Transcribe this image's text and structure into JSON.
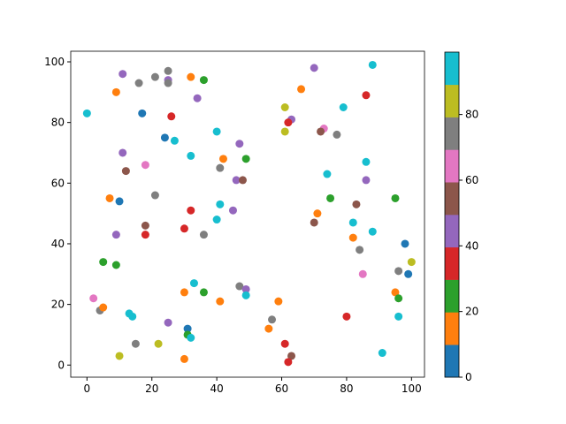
{
  "chart_data": {
    "type": "scatter",
    "x": [
      0,
      9,
      11,
      16,
      21,
      25,
      25,
      25,
      32,
      36,
      17,
      26,
      24,
      27,
      34,
      40,
      11,
      18,
      12,
      32,
      42,
      41,
      49,
      47,
      46,
      48,
      21,
      7,
      10,
      41,
      32,
      45,
      40,
      18,
      30,
      18,
      9,
      36,
      5,
      9,
      33,
      30,
      36,
      47,
      49,
      49,
      41,
      2,
      4,
      5,
      13,
      14,
      25,
      31,
      31,
      32,
      15,
      22,
      10,
      30,
      70,
      88,
      66,
      86,
      61,
      79,
      63,
      62,
      61,
      73,
      72,
      77,
      86,
      74,
      86,
      75,
      95,
      83,
      71,
      70,
      82,
      88,
      82,
      98,
      84,
      100,
      96,
      99,
      85,
      95,
      96,
      59,
      96,
      80,
      57,
      56,
      61,
      91,
      63,
      62
    ],
    "y": [
      83,
      90,
      96,
      93,
      95,
      97,
      94,
      93,
      95,
      94,
      83,
      82,
      75,
      74,
      88,
      77,
      70,
      66,
      64,
      69,
      68,
      65,
      68,
      73,
      61,
      61,
      56,
      55,
      54,
      53,
      51,
      51,
      48,
      46,
      45,
      43,
      43,
      43,
      34,
      33,
      27,
      24,
      24,
      26,
      25,
      23,
      21,
      22,
      18,
      19,
      17,
      16,
      14,
      12,
      10,
      9,
      7,
      7,
      3,
      2,
      98,
      99,
      91,
      89,
      85,
      85,
      81,
      80,
      77,
      78,
      77,
      76,
      67,
      63,
      61,
      55,
      55,
      53,
      50,
      47,
      47,
      44,
      42,
      40,
      38,
      34,
      31,
      30,
      30,
      24,
      22,
      21,
      16,
      16,
      15,
      12,
      7,
      4,
      3,
      1
    ],
    "c": [
      95,
      15,
      45,
      75,
      75,
      75,
      45,
      75,
      15,
      25,
      5,
      35,
      5,
      95,
      45,
      95,
      45,
      65,
      55,
      95,
      15,
      75,
      25,
      45,
      45,
      55,
      75,
      15,
      5,
      95,
      35,
      45,
      95,
      55,
      35,
      35,
      45,
      75,
      25,
      25,
      95,
      15,
      25,
      75,
      45,
      95,
      15,
      65,
      75,
      15,
      95,
      95,
      45,
      5,
      25,
      95,
      75,
      85,
      85,
      15,
      45,
      95,
      15,
      35,
      85,
      95,
      45,
      35,
      85,
      65,
      55,
      75,
      95,
      95,
      45,
      25,
      25,
      55,
      15,
      55,
      95,
      95,
      15,
      5,
      75,
      85,
      75,
      5,
      65,
      15,
      25,
      15,
      95,
      35,
      75,
      15,
      35,
      95,
      55,
      35
    ],
    "xlim": [
      -5,
      104
    ],
    "ylim": [
      -4,
      103.5
    ],
    "xticks": [
      0,
      20,
      40,
      60,
      80,
      100
    ],
    "yticks": [
      0,
      20,
      40,
      60,
      80,
      100
    ],
    "colorbar": {
      "clim": [
        0,
        99
      ],
      "ticks": [
        0,
        20,
        40,
        60,
        80
      ],
      "colors": [
        "#1f77b4",
        "#ff7f0e",
        "#2ca02c",
        "#d62728",
        "#9467bd",
        "#8c564b",
        "#e377c2",
        "#7f7f7f",
        "#bcbd22",
        "#17becf"
      ]
    }
  }
}
